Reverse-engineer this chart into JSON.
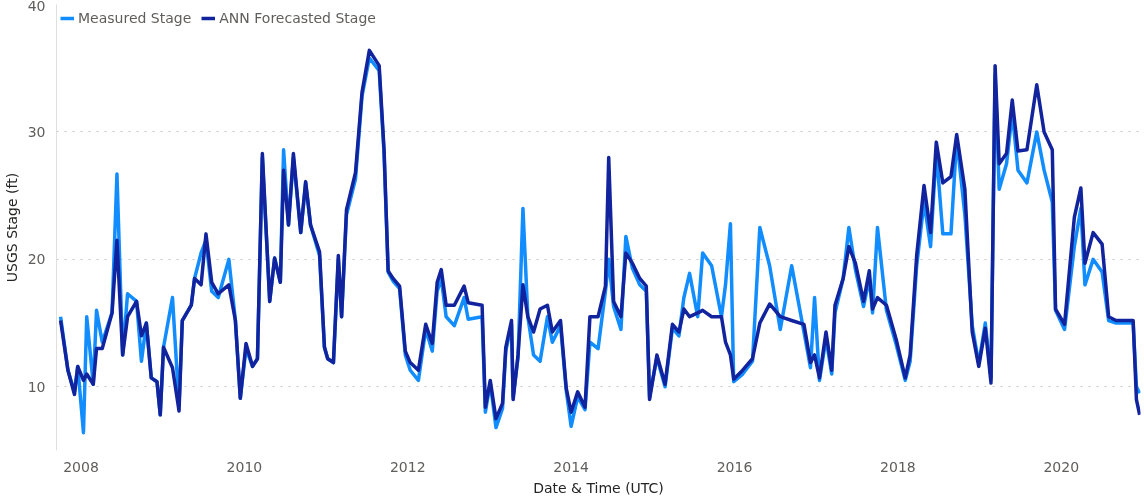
{
  "chart_data": {
    "type": "line",
    "xlabel": "Date & Time (UTC)",
    "ylabel": "USGS Stage (ft)",
    "xlim": [
      2007.7,
      2020.97
    ],
    "xticks": [
      2008,
      2010,
      2012,
      2014,
      2016,
      2018,
      2020
    ],
    "ylim": [
      5,
      40
    ],
    "yticks": [
      10,
      20,
      30,
      40
    ],
    "grid": "y",
    "legend": "top left",
    "marker": "none",
    "line_style": "solid",
    "x": [
      2007.75,
      2007.84,
      2007.92,
      2007.96,
      2008.03,
      2008.07,
      2008.15,
      2008.19,
      2008.26,
      2008.38,
      2008.44,
      2008.51,
      2008.57,
      2008.68,
      2008.74,
      2008.8,
      2008.86,
      2008.93,
      2008.97,
      2009.01,
      2009.12,
      2009.2,
      2009.24,
      2009.35,
      2009.39,
      2009.47,
      2009.53,
      2009.6,
      2009.68,
      2009.81,
      2009.89,
      2009.95,
      2010.02,
      2010.1,
      2010.16,
      2010.22,
      2010.31,
      2010.37,
      2010.44,
      2010.48,
      2010.54,
      2010.6,
      2010.69,
      2010.75,
      2010.81,
      2010.92,
      2010.98,
      2011.02,
      2011.09,
      2011.15,
      2011.19,
      2011.25,
      2011.36,
      2011.44,
      2011.53,
      2011.65,
      2011.71,
      2011.76,
      2011.82,
      2011.9,
      2011.97,
      2012.03,
      2012.13,
      2012.22,
      2012.3,
      2012.36,
      2012.41,
      2012.47,
      2012.57,
      2012.69,
      2012.74,
      2012.91,
      2012.95,
      2013.01,
      2013.08,
      2013.16,
      2013.2,
      2013.27,
      2013.29,
      2013.35,
      2013.41,
      2013.47,
      2013.54,
      2013.62,
      2013.71,
      2013.77,
      2013.87,
      2013.94,
      2014.0,
      2014.08,
      2014.17,
      2014.23,
      2014.33,
      2014.42,
      2014.46,
      2014.52,
      2014.61,
      2014.67,
      2014.75,
      2014.84,
      2014.92,
      2014.96,
      2015.05,
      2015.15,
      2015.24,
      2015.32,
      2015.38,
      2015.45,
      2015.55,
      2015.61,
      2015.72,
      2015.84,
      2015.89,
      2015.95,
      2015.99,
      2016.1,
      2016.22,
      2016.31,
      2016.43,
      2016.56,
      2016.7,
      2016.85,
      2016.93,
      2016.98,
      2017.04,
      2017.12,
      2017.19,
      2017.23,
      2017.33,
      2017.4,
      2017.48,
      2017.58,
      2017.65,
      2017.69,
      2017.75,
      2017.86,
      2017.98,
      2018.09,
      2018.15,
      2018.23,
      2018.32,
      2018.4,
      2018.47,
      2018.55,
      2018.65,
      2018.72,
      2018.82,
      2018.91,
      2018.99,
      2019.07,
      2019.14,
      2019.19,
      2019.24,
      2019.33,
      2019.4,
      2019.47,
      2019.58,
      2019.7,
      2019.79,
      2019.89,
      2019.93,
      2020.04,
      2020.16,
      2020.24,
      2020.29,
      2020.39,
      2020.5,
      2020.58,
      2020.67,
      2020.88,
      2020.92,
      2020.96
    ],
    "series": [
      {
        "name": "Measured Stage",
        "color": "#118dff",
        "values": [
          15.5,
          11.3,
          9.6,
          11.6,
          6.4,
          15.5,
          10.2,
          16,
          13.5,
          15.8,
          26.7,
          12.5,
          17.3,
          16.7,
          12,
          15,
          10.7,
          10.4,
          7.8,
          13.1,
          17,
          8.5,
          15.2,
          16.4,
          18.5,
          20.5,
          21.5,
          17.5,
          17,
          20,
          15.2,
          9.1,
          13,
          11.6,
          12.2,
          28,
          16.7,
          20.1,
          18.2,
          28.6,
          22.7,
          28,
          22.1,
          26,
          22.7,
          20.3,
          13.1,
          12.2,
          11.9,
          20,
          15.5,
          23.5,
          26.3,
          32.8,
          35.8,
          34.8,
          28.3,
          19,
          18.3,
          17.7,
          12.5,
          11.3,
          10.5,
          14.5,
          12.8,
          17.5,
          18.5,
          15.5,
          14.8,
          17,
          15.3,
          15.5,
          8,
          10.3,
          6.8,
          8.3,
          12.8,
          14.9,
          9.2,
          12.3,
          24,
          15.5,
          12.5,
          12,
          15.5,
          13.5,
          14.8,
          9.7,
          6.9,
          9.2,
          8.2,
          13.5,
          13,
          17.5,
          20,
          16.3,
          14.5,
          21.8,
          19.3,
          18,
          17.5,
          9.2,
          12.3,
          10,
          14.6,
          14,
          17,
          18.9,
          15.5,
          20.5,
          19.5,
          15.5,
          18,
          22.8,
          10.4,
          11,
          12,
          22.5,
          19.5,
          14.5,
          19.5,
          14.3,
          11.5,
          17,
          10.5,
          13.8,
          11,
          15.8,
          18.5,
          22.5,
          19.2,
          16.3,
          18.5,
          15.8,
          22.5,
          16,
          13.3,
          10.5,
          12,
          19.5,
          24.5,
          21,
          28.5,
          22,
          22,
          29.5,
          23.5,
          14.8,
          11.8,
          15,
          10.7,
          34.5,
          25.5,
          27.5,
          31.5,
          27,
          26,
          30,
          27,
          24.5,
          16,
          14.5,
          21,
          24,
          18,
          20,
          19,
          15.2,
          15,
          15,
          10,
          9.5
        ]
      },
      {
        "name": "ANN Forecasted Stage",
        "color": "#12239e",
        "values": [
          15.2,
          11.3,
          9.4,
          11.6,
          10.5,
          11,
          10.2,
          13,
          13,
          15.8,
          21.5,
          12.5,
          15.5,
          16.7,
          14,
          15,
          10.7,
          10.4,
          7.8,
          13.1,
          11.5,
          8.1,
          15.2,
          16.4,
          18.5,
          18,
          22,
          18.2,
          17.3,
          18,
          15.2,
          9.1,
          13.4,
          11.6,
          12.2,
          28.3,
          16.7,
          20.1,
          18.2,
          27,
          22.7,
          28.3,
          22.1,
          26.1,
          22.7,
          20.6,
          13.1,
          12.2,
          11.9,
          20.3,
          15.5,
          23.9,
          26.8,
          33.1,
          36.4,
          35.2,
          28.6,
          19.1,
          18.5,
          17.9,
          12.8,
          11.9,
          11.3,
          14.9,
          13.4,
          18.2,
          19.2,
          16.4,
          16.4,
          17.9,
          16.6,
          16.4,
          8.4,
          10.5,
          7.5,
          8.7,
          13.1,
          15.2,
          9,
          12.5,
          18,
          15.5,
          14.3,
          16.1,
          16.4,
          14.3,
          15.2,
          9.9,
          8,
          9.6,
          8.4,
          15.5,
          15.5,
          17.9,
          28,
          16.7,
          15.5,
          20.5,
          19.7,
          18.5,
          17.9,
          9,
          12.5,
          10.2,
          14.9,
          14.3,
          16.1,
          15.5,
          15.8,
          16,
          15.5,
          15.5,
          13.5,
          12.5,
          10.6,
          11.3,
          12.2,
          15,
          16.5,
          15.5,
          15.2,
          14.9,
          11.9,
          12.5,
          10.7,
          14.3,
          11.3,
          16.4,
          18.5,
          21,
          19.7,
          16.7,
          19.1,
          16.1,
          17,
          16.4,
          13.7,
          10.7,
          12.5,
          20.3,
          25.8,
          22.1,
          29.2,
          26,
          26.5,
          29.8,
          25.5,
          14.3,
          11.6,
          14.6,
          10.3,
          35.2,
          27.5,
          28.3,
          32.5,
          28.5,
          28.6,
          33.7,
          30,
          28.6,
          16.1,
          14.9,
          23.3,
          25.6,
          19.7,
          22.1,
          21.2,
          15.5,
          15.2,
          15.2,
          9,
          7.8
        ]
      }
    ]
  }
}
